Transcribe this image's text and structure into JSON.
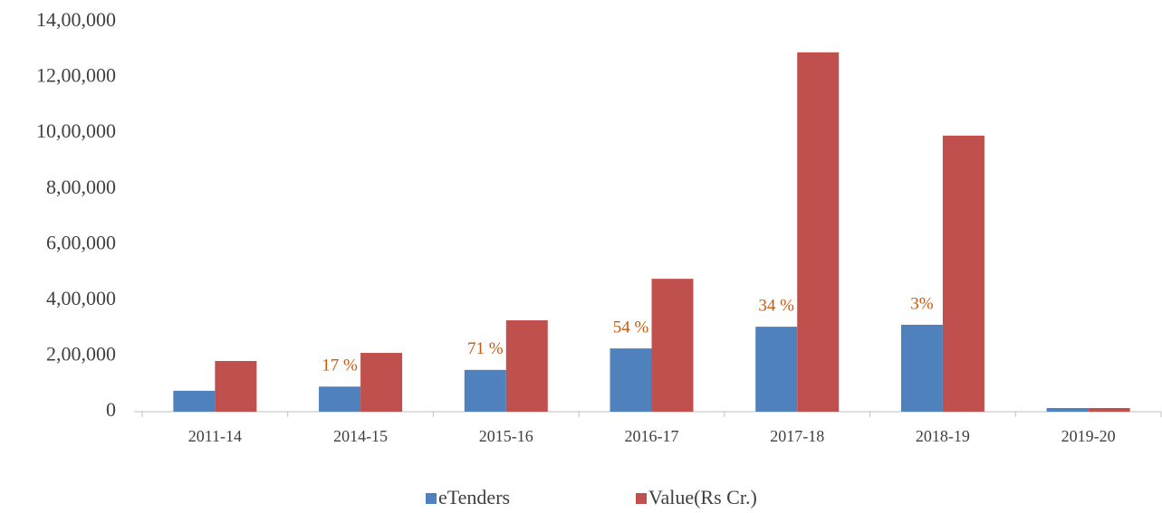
{
  "chart_data": {
    "type": "bar",
    "categories": [
      "2011-14",
      "2014-15",
      "2015-16",
      "2016-17",
      "2017-18",
      "2018-19",
      "2019-20"
    ],
    "series": [
      {
        "name": "eTenders",
        "color": "#4f81bd",
        "values": [
          75000,
          90000,
          150000,
          227000,
          305000,
          312000,
          13000
        ]
      },
      {
        "name": "Value(Rs Cr.)",
        "color": "#c0504d",
        "values": [
          182000,
          211000,
          328000,
          477000,
          1290000,
          991000,
          13000
        ]
      }
    ],
    "annotations": [
      null,
      "17 %",
      "71 %",
      "54 %",
      "34 %",
      "3%",
      null
    ],
    "annotation_color": "#c55a11",
    "ylim": [
      0,
      1400000
    ],
    "yticks": [
      0,
      {
        "value": 200000,
        "label": "2,00,000"
      },
      {
        "value": 400000,
        "label": "4,00,000"
      },
      {
        "value": 600000,
        "label": "6,00,000"
      },
      {
        "value": 800000,
        "label": "8,00,000"
      },
      {
        "value": 1000000,
        "label": "10,00,000"
      },
      {
        "value": 1200000,
        "label": "12,00,000"
      },
      {
        "value": 1400000,
        "label": "14,00,000"
      }
    ],
    "grid": false,
    "legend": "bottom"
  }
}
